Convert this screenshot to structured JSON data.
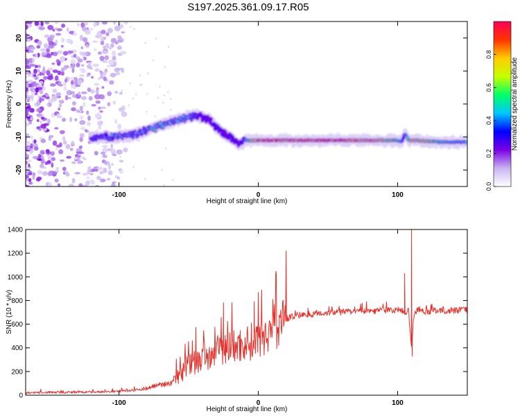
{
  "title": "S197.2025.361.09.17.R05",
  "chart_data": [
    {
      "type": "heatmap",
      "name": "spectrogram",
      "xlabel": "Height of straight line (km)",
      "ylabel": "Frequency (Hz)",
      "xlim": [
        -167,
        150
      ],
      "ylim": [
        -25,
        25
      ],
      "x_ticks": [
        -100,
        0,
        100
      ],
      "x_tick_labels": [
        "-100",
        "0",
        "100"
      ],
      "y_ticks": [
        20,
        10,
        0,
        -10,
        -20
      ],
      "y_tick_labels": [
        "20",
        "10",
        "0",
        "-10",
        "-20"
      ],
      "colorbar": {
        "label": "Normalized spectral amplitude",
        "range": [
          0,
          1
        ],
        "ticks": [
          0.0,
          0.2,
          0.4,
          0.6,
          0.8
        ],
        "tick_labels": [
          "0.0",
          "0.2",
          "0.4",
          "0.6",
          "0.8"
        ],
        "colors": [
          "#ffffff",
          "#c8b4f0",
          "#7a00e6",
          "#0000ff",
          "#00c8ff",
          "#00ff66",
          "#c8ff00",
          "#ffcc00",
          "#ff3300",
          "#ff0055"
        ]
      },
      "ridge": {
        "x": [
          -120,
          -110,
          -100,
          -90,
          -80,
          -70,
          -60,
          -55,
          -50,
          -45,
          -40,
          -35,
          -30,
          -25,
          -20,
          -15,
          -12,
          -10,
          -5,
          0,
          10,
          50,
          80,
          100,
          103,
          105,
          108,
          112,
          130,
          150
        ],
        "freq": [
          -10,
          -10,
          -10,
          -9.5,
          -8,
          -6.5,
          -5,
          -4.5,
          -4,
          -3.5,
          -4,
          -5,
          -7,
          -9,
          -10,
          -12,
          -12.5,
          -11,
          -11,
          -11,
          -11,
          -11,
          -11,
          -11,
          -11.5,
          -9,
          -11,
          -11,
          -11.5,
          -11.5
        ],
        "peak_amplitude": [
          0.4,
          0.4,
          0.45,
          0.4,
          0.45,
          0.5,
          0.45,
          0.5,
          0.45,
          0.4,
          0.3,
          0.3,
          0.35,
          0.3,
          0.3,
          0.35,
          0.35,
          0.4,
          0.7,
          0.85,
          0.9,
          0.9,
          0.85,
          0.6,
          0.4,
          0.35,
          0.6,
          0.8,
          0.55,
          0.45
        ]
      },
      "noise_region": {
        "x_range": [
          -167,
          -120
        ],
        "freq_range": [
          -25,
          25
        ]
      }
    },
    {
      "type": "line",
      "name": "snr",
      "xlabel": "Height of straight line (km)",
      "ylabel": "SNR (10 * v/v)",
      "xlim": [
        -167,
        150
      ],
      "ylim": [
        0,
        1400
      ],
      "x_ticks": [
        -100,
        0,
        100
      ],
      "x_tick_labels": [
        "-100",
        "0",
        "100"
      ],
      "y_ticks": [
        0,
        200,
        400,
        600,
        800,
        1000,
        1200,
        1400
      ],
      "y_tick_labels": [
        "0",
        "200",
        "400",
        "600",
        "800",
        "1000",
        "1200",
        "1400"
      ],
      "color": "#e8302a",
      "series": [
        {
          "name": "SNR",
          "x": [
            -167,
            -150,
            -130,
            -110,
            -100,
            -90,
            -80,
            -75,
            -70,
            -65,
            -60,
            -55,
            -50,
            -45,
            -40,
            -35,
            -30,
            -25,
            -20,
            -15,
            -10,
            -5,
            0,
            5,
            10,
            15,
            20,
            25,
            30,
            40,
            50,
            60,
            70,
            80,
            90,
            95,
            100,
            105,
            108,
            110,
            112,
            115,
            120,
            130,
            140,
            150
          ],
          "y": [
            20,
            25,
            25,
            30,
            35,
            45,
            60,
            80,
            90,
            95,
            120,
            200,
            260,
            290,
            320,
            350,
            380,
            400,
            420,
            430,
            450,
            470,
            500,
            540,
            580,
            620,
            650,
            670,
            680,
            690,
            700,
            705,
            710,
            715,
            720,
            720,
            720,
            710,
            680,
            400,
            700,
            720,
            710,
            715,
            720,
            725
          ],
          "peaks": [
            {
              "x": -25,
              "y": 780
            },
            {
              "x": -3,
              "y": 790
            },
            {
              "x": 105,
              "y": 1030
            },
            {
              "x": 110,
              "y": 1400
            },
            {
              "x": 110.5,
              "y": 330
            }
          ]
        }
      ]
    }
  ]
}
